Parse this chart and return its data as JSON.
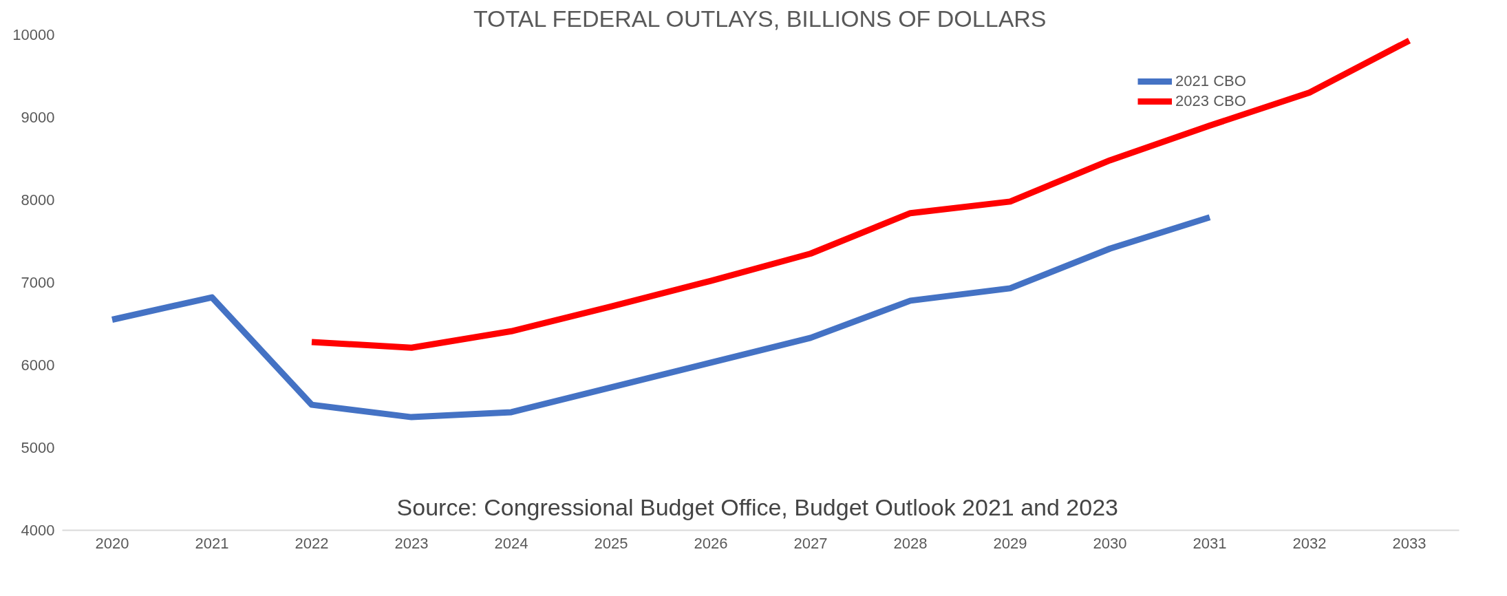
{
  "chart_data": {
    "type": "line",
    "title": "TOTAL FEDERAL OUTLAYS, BILLIONS OF DOLLARS",
    "categories": [
      "2020",
      "2021",
      "2022",
      "2023",
      "2024",
      "2025",
      "2026",
      "2027",
      "2028",
      "2029",
      "2030",
      "2031",
      "2032",
      "2033"
    ],
    "series": [
      {
        "name": "2021 CBO",
        "color": "#4472c4",
        "values": [
          6550,
          6820,
          5520,
          5370,
          5430,
          5730,
          6030,
          6330,
          6780,
          6930,
          7410,
          7790,
          null,
          null
        ]
      },
      {
        "name": "2023 CBO",
        "color": "#ff0000",
        "values": [
          null,
          null,
          6280,
          6210,
          6410,
          6710,
          7020,
          7350,
          7840,
          7980,
          8480,
          8900,
          9300,
          9930
        ]
      }
    ],
    "ylim": [
      4000,
      10000
    ],
    "yticks": [
      4000,
      5000,
      6000,
      7000,
      8000,
      9000,
      10000
    ],
    "grid": false,
    "legend": "top right",
    "marker": "none",
    "line_style": "solid",
    "annotations": [
      "Source:  Congressional Budget Office, Budget Outlook 2021 and 2023"
    ]
  }
}
